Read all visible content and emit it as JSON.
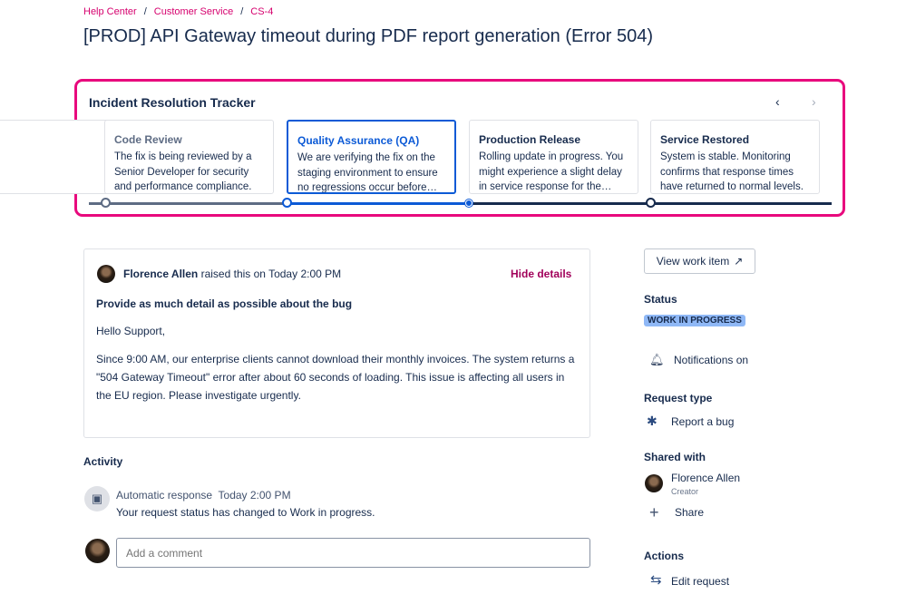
{
  "breadcrumb": [
    "Help Center",
    "Customer Service",
    "CS-4"
  ],
  "title": "[PROD] API Gateway timeout during PDF report generation (Error 504)",
  "tracker": {
    "title": "Incident Resolution Tracker",
    "prev_icon": "chevron-left-icon",
    "next_icon": "chevron-right-icon",
    "steps": [
      {
        "title": "Code Review",
        "text": "The fix is being reviewed by a Senior Developer for security and performance compliance.",
        "state": "past"
      },
      {
        "title": "Quality Assurance (QA)",
        "text": "We are verifying the fix on the staging environment to ensure no regressions occur before…",
        "state": "active"
      },
      {
        "title": "Production Release",
        "text": "Rolling update in progress. You might experience a slight delay in service response for the…",
        "state": "upcoming"
      },
      {
        "title": "Service Restored",
        "text": "System is stable. Monitoring confirms that response times have returned to normal levels.",
        "state": "upcoming"
      }
    ],
    "colors": {
      "border": "#e8097d",
      "past": "#5e6c84",
      "active": "#0c5ad6",
      "upcoming": "#172b4d"
    }
  },
  "request": {
    "author": "Florence Allen",
    "raised": "raised this on Today 2:00 PM",
    "hide": "Hide details",
    "heading": "Provide as much detail as possible about the bug",
    "greeting": "Hello Support,",
    "body": "Since 9:00 AM, our enterprise clients cannot download their monthly invoices. The system returns a \"504 Gateway Timeout\" error after about 60 seconds of loading. This issue is affecting all users in the EU region. Please investigate urgently."
  },
  "activity": {
    "title": "Activity",
    "author": "Automatic response",
    "time": "Today 2:00 PM",
    "text": "Your request status has changed to Work in progress.",
    "comment_placeholder": "Add a comment"
  },
  "sidebar": {
    "view": "View work item",
    "status_label": "Status",
    "status": "WORK IN PROGRESS",
    "status_color": "#8fb8f6",
    "notifications": "Notifications on",
    "request_type_label": "Request type",
    "request_type": "Report a bug",
    "shared_label": "Shared with",
    "shared_name": "Florence Allen",
    "shared_role": "Creator",
    "share": "Share",
    "actions_label": "Actions",
    "edit": "Edit request"
  }
}
